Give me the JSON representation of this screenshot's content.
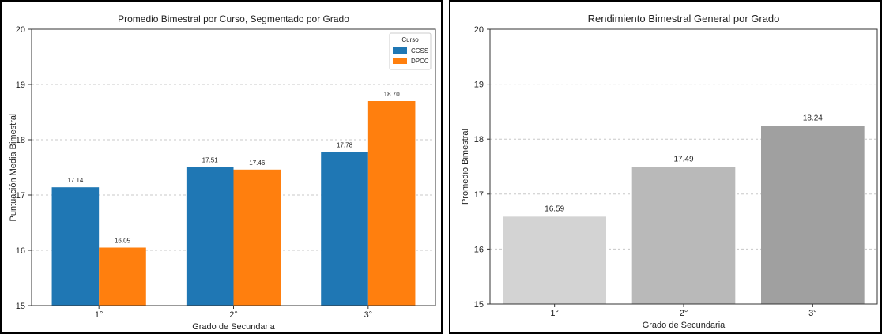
{
  "chart_data": [
    {
      "type": "bar",
      "title": "Promedio Bimestral por Curso, Segmentado por Grado",
      "xlabel": "Grado de Secundaria",
      "ylabel": "Puntuación Media Bimestral",
      "categories": [
        "1°",
        "2°",
        "3°"
      ],
      "ylim": [
        15,
        20
      ],
      "yticks": [
        "15",
        "16",
        "17",
        "18",
        "19",
        "20"
      ],
      "grid": true,
      "legend": {
        "title": "Curso",
        "placement": "top-right"
      },
      "series": [
        {
          "name": "CCSS",
          "values": [
            17.14,
            17.51,
            17.78
          ],
          "labels": [
            "17.14",
            "17.51",
            "17.78"
          ],
          "color": "#1f77b4"
        },
        {
          "name": "DPCC",
          "values": [
            16.05,
            17.46,
            18.7
          ],
          "labels": [
            "16.05",
            "17.46",
            "18.70"
          ],
          "color": "#ff7f0e"
        }
      ]
    },
    {
      "type": "bar",
      "title": "Rendimiento Bimestral General por Grado",
      "xlabel": "Grado de Secundaria",
      "ylabel": "Promedio Bimestral",
      "categories": [
        "1°",
        "2°",
        "3°"
      ],
      "ylim": [
        15,
        20
      ],
      "yticks": [
        "15",
        "16",
        "17",
        "18",
        "19",
        "20"
      ],
      "grid": true,
      "values": [
        16.59,
        17.49,
        18.24
      ],
      "labels": [
        "16.59",
        "17.49",
        "18.24"
      ],
      "colors": [
        "#d3d3d3",
        "#b9b9b9",
        "#a0a0a0"
      ]
    }
  ]
}
